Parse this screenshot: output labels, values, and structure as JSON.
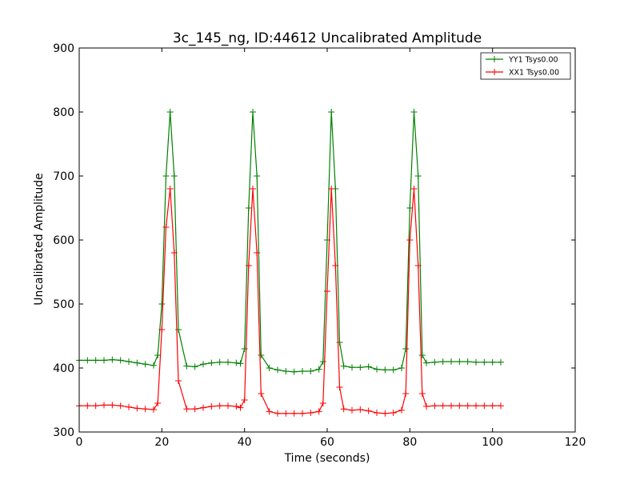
{
  "chart_data": {
    "type": "line",
    "title": "3c_145_ng, ID:44612 Uncalibrated Amplitude",
    "xlabel": "Time (seconds)",
    "ylabel": "Uncalibrated Amplitude",
    "xlim": [
      0,
      120
    ],
    "ylim": [
      300,
      900
    ],
    "xticks": [
      0,
      20,
      40,
      60,
      80,
      100,
      120
    ],
    "yticks": [
      300,
      400,
      500,
      600,
      700,
      800,
      900
    ],
    "grid": false,
    "legend_position": "top-right",
    "x": [
      0,
      2,
      4,
      6,
      8,
      10,
      12,
      14,
      16,
      18,
      19,
      20,
      21,
      22,
      23,
      24,
      26,
      28,
      30,
      32,
      34,
      36,
      38,
      39,
      40,
      41,
      42,
      43,
      44,
      46,
      48,
      50,
      52,
      54,
      56,
      58,
      59,
      60,
      61,
      62,
      63,
      64,
      66,
      68,
      70,
      72,
      74,
      76,
      78,
      79,
      80,
      81,
      82,
      83,
      84,
      86,
      88,
      90,
      92,
      94,
      96,
      98,
      100,
      102
    ],
    "series": [
      {
        "name": "YY1 Tsys0.00",
        "color": "#008000",
        "values": [
          412,
          412,
          412,
          412,
          413,
          412,
          410,
          408,
          406,
          404,
          420,
          500,
          700,
          800,
          700,
          460,
          403,
          402,
          406,
          408,
          409,
          409,
          408,
          407,
          430,
          650,
          800,
          700,
          420,
          400,
          397,
          395,
          394,
          395,
          395,
          398,
          410,
          600,
          800,
          680,
          440,
          403,
          401,
          401,
          402,
          398,
          397,
          397,
          400,
          430,
          650,
          800,
          700,
          420,
          408,
          409,
          410,
          410,
          410,
          410,
          409,
          409,
          409,
          409
        ]
      },
      {
        "name": "XX1 Tsys0.00",
        "color": "#ff0000",
        "values": [
          341,
          341,
          341,
          342,
          342,
          341,
          339,
          337,
          336,
          335,
          345,
          460,
          620,
          680,
          580,
          380,
          336,
          336,
          338,
          340,
          341,
          341,
          340,
          338,
          350,
          560,
          680,
          580,
          360,
          332,
          329,
          329,
          329,
          329,
          330,
          332,
          345,
          520,
          680,
          560,
          370,
          336,
          334,
          335,
          333,
          330,
          329,
          330,
          334,
          360,
          600,
          680,
          560,
          360,
          340,
          341,
          341,
          341,
          341,
          341,
          341,
          341,
          341,
          341
        ]
      }
    ]
  }
}
